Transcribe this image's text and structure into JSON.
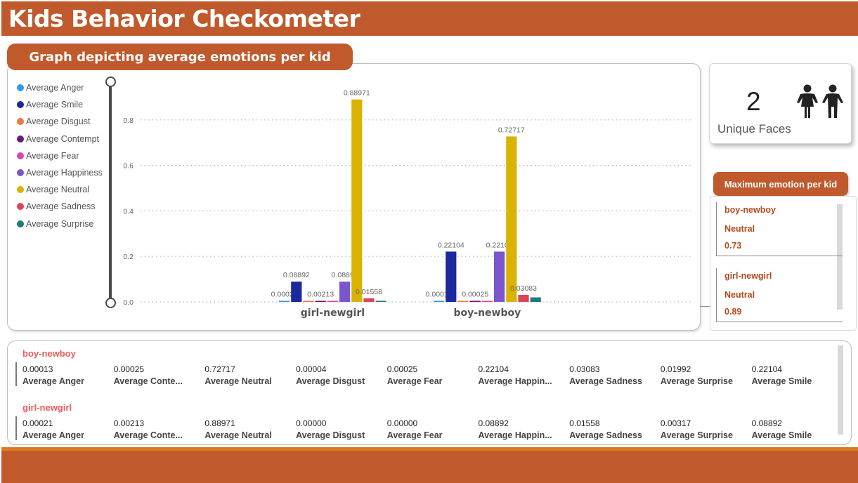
{
  "header": {
    "title": "Kids Behavior Checkometer"
  },
  "graph_panel": {
    "title": "Graph depicting average emotions per kid"
  },
  "legend": [
    {
      "label": "Average Anger",
      "color": "#3399ee"
    },
    {
      "label": "Average Smile",
      "color": "#1a2a9c"
    },
    {
      "label": "Average Disgust",
      "color": "#ee7744"
    },
    {
      "label": "Average Contempt",
      "color": "#6a1a7a"
    },
    {
      "label": "Average Fear",
      "color": "#dd44aa"
    },
    {
      "label": "Average Happiness",
      "color": "#7a55cc"
    },
    {
      "label": "Average Neutral",
      "color": "#d9b300"
    },
    {
      "label": "Average Sadness",
      "color": "#dd4455"
    },
    {
      "label": "Average Surprise",
      "color": "#1f7a7a"
    }
  ],
  "chart_data": {
    "type": "bar",
    "categories": [
      "girl-newgirl",
      "boy-newboy"
    ],
    "ylim": [
      0,
      0.9
    ],
    "yticks": [
      "0.0",
      "0.2",
      "0.4",
      "0.6",
      "0.8"
    ],
    "series": [
      {
        "name": "Average Anger",
        "values": [
          0.00021,
          0.00013
        ],
        "labels": [
          "0.00021",
          "0.00013"
        ]
      },
      {
        "name": "Average Smile",
        "values": [
          0.08892,
          0.22104
        ],
        "labels": [
          "0.08892",
          "0.22104"
        ]
      },
      {
        "name": "Average Disgust",
        "values": [
          0.0,
          4e-05
        ],
        "labels": [
          "",
          ""
        ]
      },
      {
        "name": "Average Contempt",
        "values": [
          0.00213,
          0.00025
        ],
        "labels": [
          "0.00213",
          "0.00025"
        ]
      },
      {
        "name": "Average Fear",
        "values": [
          0.0,
          0.00025
        ],
        "labels": [
          "",
          ""
        ]
      },
      {
        "name": "Average Happiness",
        "values": [
          0.08892,
          0.22104
        ],
        "labels": [
          "0.08892",
          "0.22104"
        ]
      },
      {
        "name": "Average Neutral",
        "values": [
          0.88971,
          0.72717
        ],
        "labels": [
          "0.88971",
          "0.72717"
        ]
      },
      {
        "name": "Average Sadness",
        "values": [
          0.01558,
          0.03083
        ],
        "labels": [
          "0.01558",
          "0.03083"
        ]
      },
      {
        "name": "Average Surprise",
        "values": [
          0.00317,
          0.01992
        ],
        "labels": [
          "",
          ""
        ]
      }
    ]
  },
  "faces_card": {
    "count": "2",
    "label": "Unique Faces",
    "icon": "children-icon"
  },
  "max_emotion": {
    "title": "Maximum emotion per kid",
    "entries": [
      {
        "name": "boy-newboy",
        "emotion": "Neutral",
        "value": "0.73"
      },
      {
        "name": "girl-newgirl",
        "emotion": "Neutral",
        "value": "0.89"
      }
    ]
  },
  "details": [
    {
      "name": "boy-newboy",
      "metrics": [
        {
          "value": "0.00013",
          "label": "Average Anger"
        },
        {
          "value": "0.00025",
          "label": "Average Conte..."
        },
        {
          "value": "0.72717",
          "label": "Average Neutral"
        },
        {
          "value": "0.00004",
          "label": "Average Disgust"
        },
        {
          "value": "0.00025",
          "label": "Average Fear"
        },
        {
          "value": "0.22104",
          "label": "Average Happin..."
        },
        {
          "value": "0.03083",
          "label": "Average Sadness"
        },
        {
          "value": "0.01992",
          "label": "Average Surprise"
        },
        {
          "value": "0.22104",
          "label": "Average Smile"
        }
      ]
    },
    {
      "name": "girl-newgirl",
      "metrics": [
        {
          "value": "0.00021",
          "label": "Average Anger"
        },
        {
          "value": "0.00213",
          "label": "Average Conte..."
        },
        {
          "value": "0.88971",
          "label": "Average Neutral"
        },
        {
          "value": "0.00000",
          "label": "Average Disgust"
        },
        {
          "value": "0.00000",
          "label": "Average Fear"
        },
        {
          "value": "0.08892",
          "label": "Average Happin..."
        },
        {
          "value": "0.01558",
          "label": "Average Sadness"
        },
        {
          "value": "0.00317",
          "label": "Average Surprise"
        },
        {
          "value": "0.08892",
          "label": "Average Smile"
        }
      ]
    }
  ]
}
